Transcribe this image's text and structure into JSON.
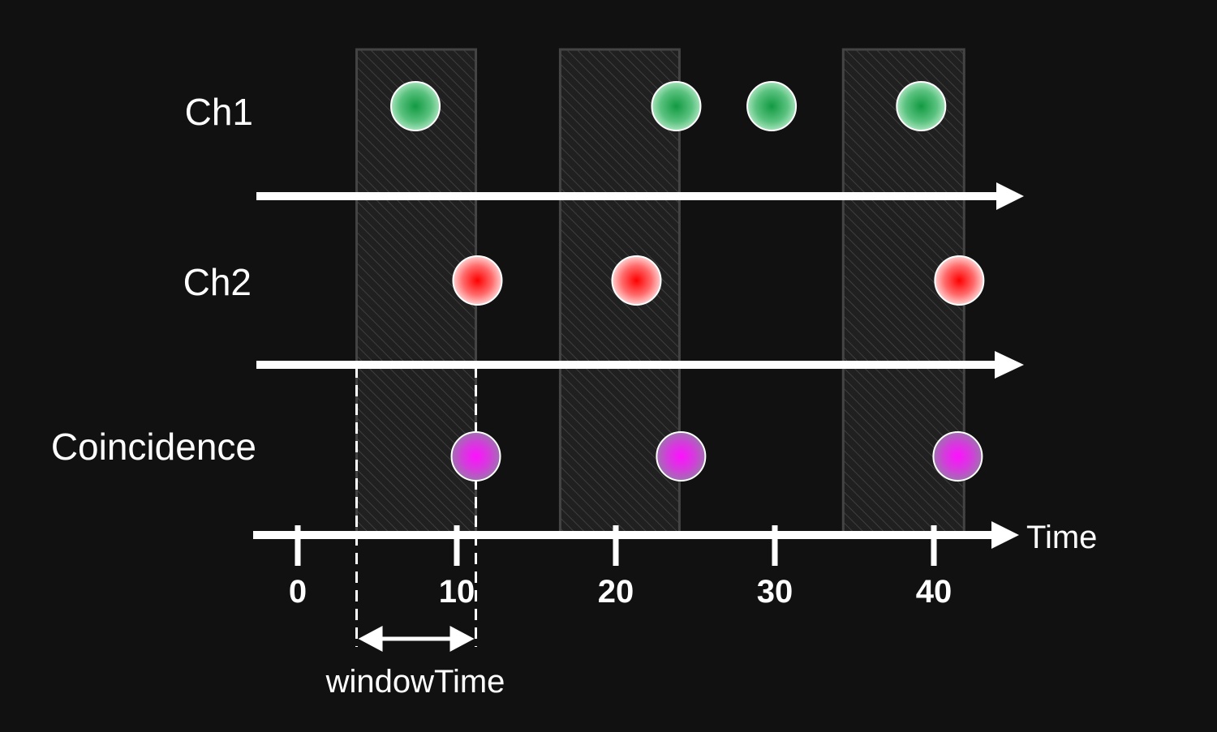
{
  "channels": [
    {
      "label": "Ch1",
      "events": [
        7.4,
        23.8,
        29.8,
        39.2
      ]
    },
    {
      "label": "Ch2",
      "events": [
        11.3,
        21.3,
        41.6
      ]
    },
    {
      "label": "Coincidence",
      "events": [
        11.2,
        24.1,
        41.5
      ]
    }
  ],
  "windows": [
    [
      3.7,
      11.2
    ],
    [
      16.5,
      24.0
    ],
    [
      34.3,
      41.9
    ]
  ],
  "axis": {
    "label": "Time",
    "ticks": [
      {
        "value": 0,
        "label": "0"
      },
      {
        "value": 10,
        "label": "10"
      },
      {
        "value": 20,
        "label": "20"
      },
      {
        "value": 30,
        "label": "30"
      },
      {
        "value": 40,
        "label": "40"
      }
    ]
  },
  "window_annotation": {
    "label": "windowTime",
    "start": 3.7,
    "end": 11.2
  },
  "colors": {
    "background": "#111111",
    "ch1": "#1e9e4a",
    "ch2": "#ff1a1a",
    "coincidence": "#ff22ff",
    "axis": "#ffffff",
    "window_fill": "#222222",
    "window_stroke": "#444444"
  }
}
